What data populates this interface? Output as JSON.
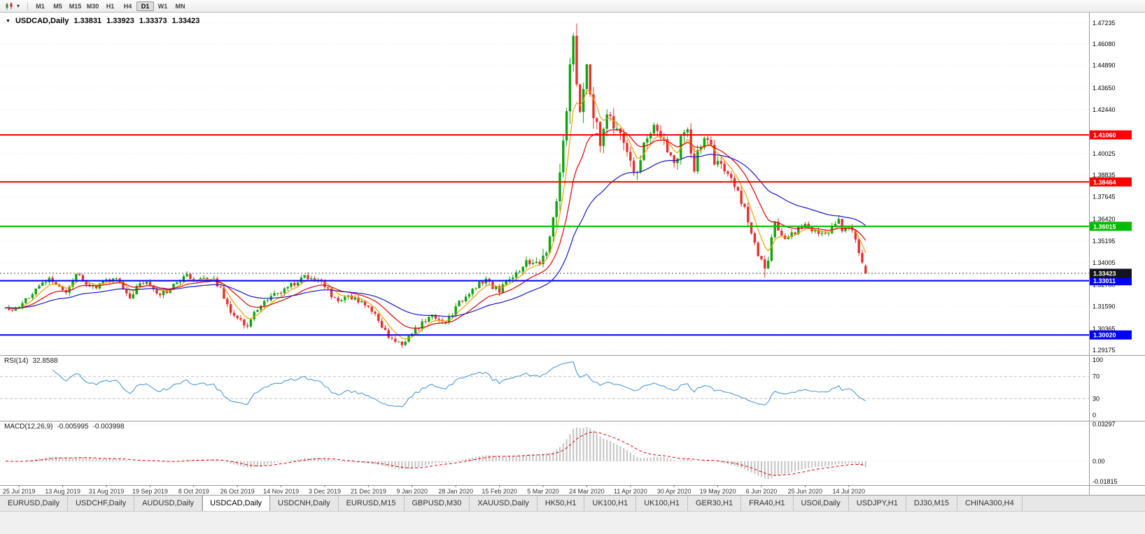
{
  "toolbar": {
    "chart_type_icon": "candlestick-chart-icon",
    "dropdown_caret": "▾",
    "timeframes": [
      "M1",
      "M5",
      "M15",
      "M30",
      "H1",
      "H4",
      "D1",
      "W1",
      "MN"
    ],
    "active_timeframe": "D1"
  },
  "symbol_line": {
    "expander": "▼",
    "symbol": "USDCAD,Daily",
    "open": "1.33831",
    "high": "1.33923",
    "low": "1.33373",
    "close": "1.33423"
  },
  "price_axis": {
    "labels": [
      "1.47235",
      "1.46080",
      "1.44890",
      "1.43650",
      "1.42440",
      "1.40025",
      "1.38835",
      "1.37645",
      "1.36420",
      "1.35195",
      "1.34005",
      "1.32780",
      "1.31590",
      "1.30365",
      "1.29175"
    ]
  },
  "hlines": [
    {
      "label": "1.41060",
      "value": 1.4106,
      "color": "#FF0000"
    },
    {
      "label": "1.38464",
      "value": 1.38464,
      "color": "#FF0000"
    },
    {
      "label": "1.36015",
      "value": 1.36015,
      "color": "#00BB00"
    },
    {
      "label": "1.33011",
      "value": 1.33011,
      "color": "#0000FF"
    },
    {
      "label": "1.30020",
      "value": 1.3002,
      "color": "#0000FF"
    }
  ],
  "current_price": {
    "label": "1.33423",
    "value": 1.33423,
    "badge_color": "#14141E"
  },
  "date_axis": [
    "25 Jul 2019",
    "13 Aug 2019",
    "31 Aug 2019",
    "19 Sep 2019",
    "8 Oct 2019",
    "26 Oct 2019",
    "14 Nov 2019",
    "3 Dec 2019",
    "21 Dec 2019",
    "9 Jan 2020",
    "28 Jan 2020",
    "15 Feb 2020",
    "5 Mar 2020",
    "24 Mar 2020",
    "11 Apr 2020",
    "30 Apr 2020",
    "19 May 2020",
    "6 Jun 2020",
    "25 Jun 2020",
    "14 Jul 2020"
  ],
  "rsi": {
    "name": "RSI(14)",
    "value_text": "32.8588",
    "line_color": "#4E9BD4",
    "levels": [
      {
        "text": "100",
        "value": 100,
        "line": false
      },
      {
        "text": "70",
        "value": 70,
        "line": true
      },
      {
        "text": "30",
        "value": 30,
        "line": true
      },
      {
        "text": "0",
        "value": 0,
        "line": false
      }
    ]
  },
  "macd": {
    "name": "MACD(12,26,9)",
    "value_text": "-0.005995",
    "signal_text": "-0.003998",
    "histogram_color": "#C8C8C8",
    "signal_color": "#E00000",
    "axis": [
      {
        "text": "0.03297",
        "value": 0.03297
      },
      {
        "text": "0.00",
        "value": 0
      },
      {
        "text": "-0.01815",
        "value": -0.01815
      }
    ]
  },
  "tabs": {
    "items": [
      "EURUSD,Daily",
      "USDCHF,Daily",
      "AUDUSD,Daily",
      "USDCAD,Daily",
      "USDCNH,Daily",
      "EURUSD,M15",
      "GBPUSD,M30",
      "XAUUSD,Daily",
      "HK50,H1",
      "UK100,H1",
      "UK100,H1",
      "GER30,H1",
      "FRA40,H1",
      "USOil,Daily",
      "USDJPY,H1",
      "DJ30,M15",
      "CHINA300,H4"
    ],
    "active_index": 3
  },
  "chart_data": {
    "type": "candlestick",
    "symbol": "USDCAD",
    "timeframe": "Daily",
    "n": 257,
    "y_range": [
      1.2891,
      1.4781
    ],
    "current_ohlc": [
      1.33831,
      1.33923,
      1.33373,
      1.33423
    ],
    "up_color": "#0FA30F",
    "down_color": "#E53030",
    "close_anchors": [
      [
        0,
        1.314
      ],
      [
        4,
        1.315
      ],
      [
        7,
        1.322
      ],
      [
        10,
        1.328
      ],
      [
        13,
        1.3315
      ],
      [
        16,
        1.326
      ],
      [
        18,
        1.3235
      ],
      [
        20,
        1.332
      ],
      [
        22,
        1.3335
      ],
      [
        24,
        1.329
      ],
      [
        27,
        1.326
      ],
      [
        30,
        1.33
      ],
      [
        33,
        1.332
      ],
      [
        35,
        1.3255
      ],
      [
        37,
        1.3195
      ],
      [
        39,
        1.326
      ],
      [
        41,
        1.33
      ],
      [
        43,
        1.327
      ],
      [
        46,
        1.3225
      ],
      [
        49,
        1.3255
      ],
      [
        52,
        1.33
      ],
      [
        54,
        1.333
      ],
      [
        56,
        1.331
      ],
      [
        58,
        1.333
      ],
      [
        60,
        1.3295
      ],
      [
        62,
        1.331
      ],
      [
        64,
        1.3255
      ],
      [
        66,
        1.3165
      ],
      [
        68,
        1.3115
      ],
      [
        70,
        1.3075
      ],
      [
        72,
        1.306
      ],
      [
        74,
        1.313
      ],
      [
        77,
        1.3185
      ],
      [
        80,
        1.323
      ],
      [
        83,
        1.3255
      ],
      [
        86,
        1.329
      ],
      [
        89,
        1.332
      ],
      [
        92,
        1.33
      ],
      [
        95,
        1.328
      ],
      [
        97,
        1.3215
      ],
      [
        99,
        1.3175
      ],
      [
        102,
        1.322
      ],
      [
        105,
        1.3185
      ],
      [
        108,
        1.3155
      ],
      [
        110,
        1.3125
      ],
      [
        112,
        1.3055
      ],
      [
        114,
        1.2995
      ],
      [
        116,
        1.2965
      ],
      [
        118,
        1.2958
      ],
      [
        121,
        1.301
      ],
      [
        123,
        1.305
      ],
      [
        125,
        1.308
      ],
      [
        127,
        1.311
      ],
      [
        129,
        1.309
      ],
      [
        131,
        1.3065
      ],
      [
        133,
        1.312
      ],
      [
        135,
        1.3175
      ],
      [
        137,
        1.3215
      ],
      [
        139,
        1.3255
      ],
      [
        141,
        1.3295
      ],
      [
        143,
        1.331
      ],
      [
        145,
        1.327
      ],
      [
        147,
        1.325
      ],
      [
        149,
        1.328
      ],
      [
        151,
        1.331
      ],
      [
        153,
        1.336
      ],
      [
        155,
        1.342
      ],
      [
        157,
        1.339
      ],
      [
        159,
        1.341
      ],
      [
        161,
        1.346
      ],
      [
        162,
        1.356
      ],
      [
        163,
        1.366
      ],
      [
        164,
        1.374
      ],
      [
        165,
        1.388
      ],
      [
        166,
        1.405
      ],
      [
        167,
        1.426
      ],
      [
        168,
        1.45
      ],
      [
        169,
        1.462
      ],
      [
        170,
        1.445
      ],
      [
        171,
        1.428
      ],
      [
        172,
        1.438
      ],
      [
        173,
        1.445
      ],
      [
        174,
        1.43
      ],
      [
        175,
        1.419
      ],
      [
        177,
        1.409
      ],
      [
        179,
        1.42
      ],
      [
        181,
        1.415
      ],
      [
        183,
        1.409
      ],
      [
        185,
        1.4
      ],
      [
        186,
        1.396
      ],
      [
        188,
        1.39
      ],
      [
        190,
        1.404
      ],
      [
        192,
        1.412
      ],
      [
        194,
        1.416
      ],
      [
        196,
        1.409
      ],
      [
        198,
        1.399
      ],
      [
        199,
        1.3945
      ],
      [
        201,
        1.407
      ],
      [
        203,
        1.413
      ],
      [
        205,
        1.3925
      ],
      [
        207,
        1.406
      ],
      [
        209,
        1.41
      ],
      [
        211,
        1.397
      ],
      [
        212,
        1.3935
      ],
      [
        214,
        1.3905
      ],
      [
        216,
        1.387
      ],
      [
        218,
        1.378
      ],
      [
        220,
        1.369
      ],
      [
        222,
        1.357
      ],
      [
        224,
        1.346
      ],
      [
        225,
        1.3425
      ],
      [
        226,
        1.339
      ],
      [
        227,
        1.343
      ],
      [
        229,
        1.362
      ],
      [
        231,
        1.356
      ],
      [
        233,
        1.3535
      ],
      [
        235,
        1.357
      ],
      [
        237,
        1.361
      ],
      [
        238,
        1.363
      ],
      [
        240,
        1.358
      ],
      [
        242,
        1.356
      ],
      [
        244,
        1.355
      ],
      [
        246,
        1.361
      ],
      [
        248,
        1.363
      ],
      [
        249,
        1.359
      ],
      [
        251,
        1.361
      ],
      [
        252,
        1.357
      ],
      [
        253,
        1.352
      ],
      [
        254,
        1.347
      ],
      [
        255,
        1.342
      ],
      [
        256,
        1.33423
      ]
    ],
    "volatility_anchors": [
      [
        0,
        0.0034
      ],
      [
        64,
        0.0036
      ],
      [
        104,
        0.0034
      ],
      [
        144,
        0.0036
      ],
      [
        156,
        0.0045
      ],
      [
        162,
        0.009
      ],
      [
        166,
        0.014
      ],
      [
        169,
        0.016
      ],
      [
        172,
        0.015
      ],
      [
        176,
        0.011
      ],
      [
        184,
        0.009
      ],
      [
        199,
        0.0075
      ],
      [
        209,
        0.007
      ],
      [
        216,
        0.006
      ],
      [
        224,
        0.0055
      ],
      [
        230,
        0.0045
      ],
      [
        239,
        0.0038
      ],
      [
        256,
        0.0042
      ]
    ],
    "high_overrides": [
      [
        169,
        1.4668
      ]
    ],
    "low_overrides": [
      [
        226,
        1.3318
      ]
    ],
    "moving_averages": [
      {
        "name": "ma-fast",
        "period": 6,
        "color": "#F0A000"
      },
      {
        "name": "ma-mid",
        "period": 16,
        "color": "#E00000"
      },
      {
        "name": "ma-slow",
        "period": 40,
        "color": "#1818C8"
      }
    ],
    "indicators": [
      {
        "name": "RSI",
        "period": 14,
        "current": 32.8588
      },
      {
        "name": "MACD",
        "fast": 12,
        "slow": 26,
        "signal": 9,
        "current": -0.005995,
        "current_signal": -0.003998
      }
    ]
  }
}
